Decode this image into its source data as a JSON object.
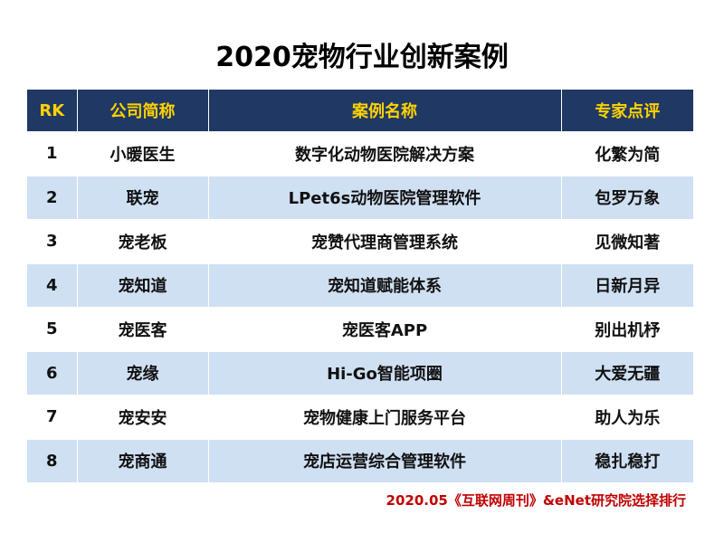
{
  "title": "2020宠物行业创新案例",
  "table": {
    "headers": {
      "rank": "RK",
      "company": "公司简称",
      "case": "案例名称",
      "review": "专家点评"
    },
    "rows": [
      {
        "rank": "1",
        "company": "小暖医生",
        "case": "数字化动物医院解决方案",
        "review": "化繁为简"
      },
      {
        "rank": "2",
        "company": "联宠",
        "case": "LPet6s动物医院管理软件",
        "review": "包罗万象"
      },
      {
        "rank": "3",
        "company": "宠老板",
        "case": "宠赞代理商管理系统",
        "review": "见微知著"
      },
      {
        "rank": "4",
        "company": "宠知道",
        "case": "宠知道赋能体系",
        "review": "日新月异"
      },
      {
        "rank": "5",
        "company": "宠医客",
        "case": "宠医客APP",
        "review": "别出机杼"
      },
      {
        "rank": "6",
        "company": "宠缘",
        "case": "Hi-Go智能项圈",
        "review": "大爱无疆"
      },
      {
        "rank": "7",
        "company": "宠安安",
        "case": "宠物健康上门服务平台",
        "review": "助人为乐"
      },
      {
        "rank": "8",
        "company": "宠商通",
        "case": "宠店运营综合管理软件",
        "review": "稳扎稳打"
      }
    ]
  },
  "footnote": "2020.05《互联网周刊》&eNet研究院选择排行",
  "colors": {
    "header_bg": "#1f3864",
    "header_text": "#ffd200",
    "stripe": "#cfe0f3",
    "footnote": "#c00000"
  }
}
